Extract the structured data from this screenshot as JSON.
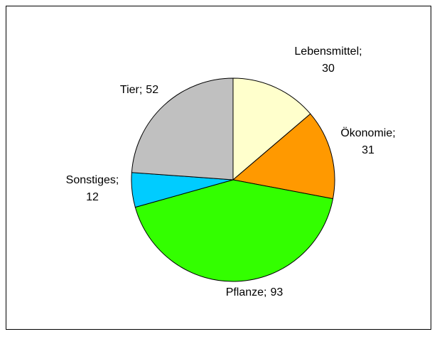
{
  "chart_data": {
    "type": "pie",
    "categories": [
      "Lebensmittel;",
      "Ökonomie;",
      "Pflanze;",
      "Sonstiges;",
      "Tier;"
    ],
    "values": [
      30,
      31,
      93,
      12,
      52
    ],
    "colors": [
      "#ffffcc",
      "#ff9900",
      "#33ff00",
      "#00ccff",
      "#c0c0c0"
    ]
  }
}
